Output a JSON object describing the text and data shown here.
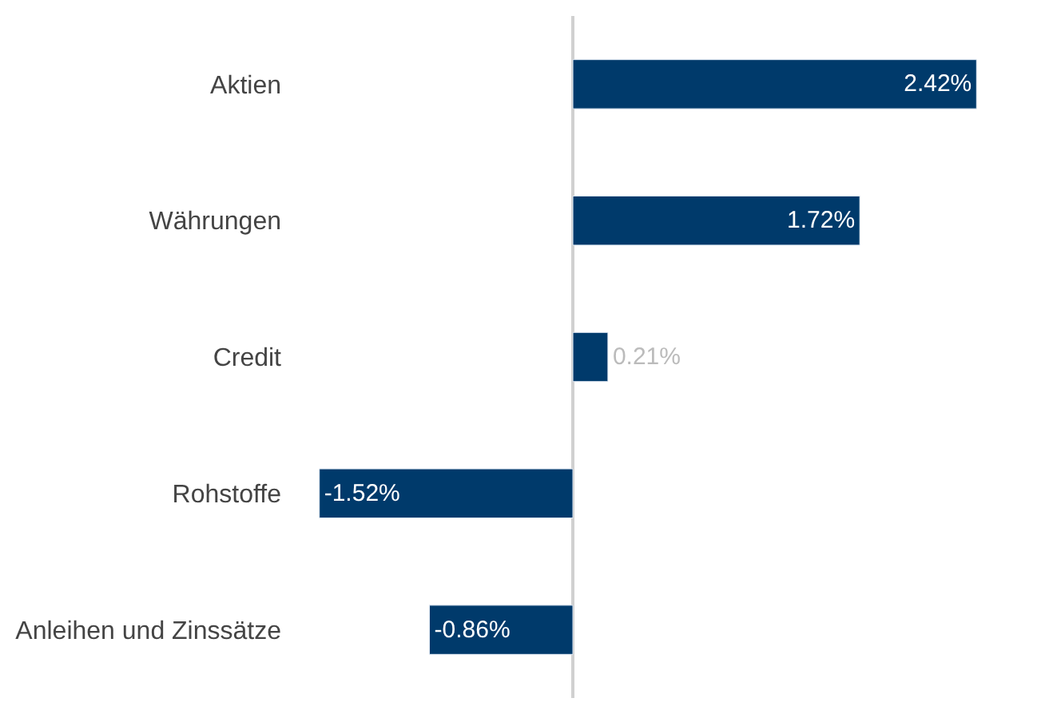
{
  "chart_data": {
    "type": "bar",
    "orientation": "horizontal",
    "categories": [
      "Aktien",
      "Währungen",
      "Credit",
      "Rohstoffe",
      "Anleihen und Zinssätze"
    ],
    "values": [
      2.42,
      1.72,
      0.21,
      -1.52,
      -0.86
    ],
    "value_labels": [
      "2.42%",
      "1.72%",
      "0.21%",
      "-1.52%",
      "-0.86%"
    ],
    "color": "#003a6b"
  }
}
